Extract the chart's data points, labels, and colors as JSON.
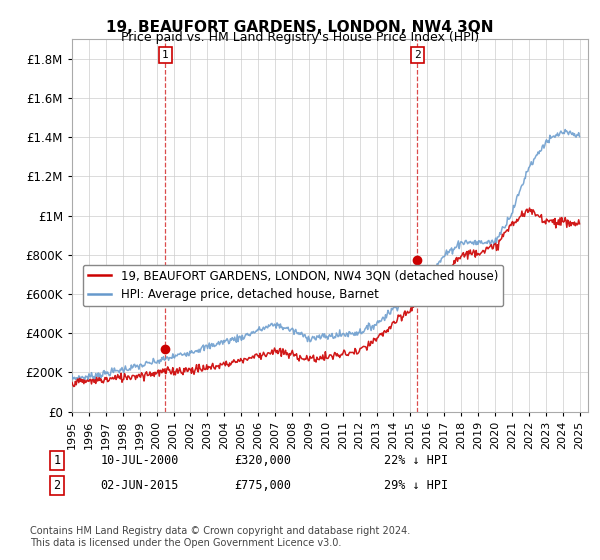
{
  "title": "19, BEAUFORT GARDENS, LONDON, NW4 3QN",
  "subtitle": "Price paid vs. HM Land Registry's House Price Index (HPI)",
  "ytick_values": [
    0,
    200000,
    400000,
    600000,
    800000,
    1000000,
    1200000,
    1400000,
    1600000,
    1800000
  ],
  "ylim": [
    0,
    1900000
  ],
  "xlim_start": 1995.0,
  "xlim_end": 2025.5,
  "x_years": [
    1995,
    1996,
    1997,
    1998,
    1999,
    2000,
    2001,
    2002,
    2003,
    2004,
    2005,
    2006,
    2007,
    2008,
    2009,
    2010,
    2011,
    2012,
    2013,
    2014,
    2015,
    2016,
    2017,
    2018,
    2019,
    2020,
    2021,
    2022,
    2023,
    2024,
    2025
  ],
  "hpi_base": [
    170000,
    178000,
    195000,
    215000,
    233000,
    255000,
    280000,
    305000,
    330000,
    358000,
    378000,
    415000,
    445000,
    415000,
    375000,
    382000,
    393000,
    405000,
    448000,
    525000,
    598000,
    678000,
    795000,
    865000,
    862000,
    865000,
    1015000,
    1248000,
    1375000,
    1425000,
    1405000
  ],
  "pp_base": [
    148000,
    155000,
    163000,
    175000,
    186000,
    198000,
    208000,
    213000,
    222000,
    242000,
    262000,
    287000,
    307000,
    290000,
    268000,
    277000,
    292000,
    307000,
    367000,
    447000,
    517000,
    597000,
    717000,
    797000,
    817000,
    837000,
    957000,
    1027000,
    977000,
    967000,
    957000
  ],
  "sale_point_1_x": 2000.52,
  "sale_point_1_y": 320000,
  "sale_point_2_x": 2015.42,
  "sale_point_2_y": 775000,
  "vline_1_x": 2000.52,
  "vline_2_x": 2015.42,
  "legend_line1": "19, BEAUFORT GARDENS, LONDON, NW4 3QN (detached house)",
  "legend_line2": "HPI: Average price, detached house, Barnet",
  "annotation_1_label": "1",
  "annotation_1_date": "10-JUL-2000",
  "annotation_1_price": "£320,000",
  "annotation_1_hpi": "22% ↓ HPI",
  "annotation_2_label": "2",
  "annotation_2_date": "02-JUN-2015",
  "annotation_2_price": "£775,000",
  "annotation_2_hpi": "29% ↓ HPI",
  "footer": "Contains HM Land Registry data © Crown copyright and database right 2024.\nThis data is licensed under the Open Government Licence v3.0.",
  "line_color_red": "#cc0000",
  "line_color_blue": "#6699cc",
  "vline_color": "#cc0000",
  "point_color_red": "#cc0000",
  "bg_color": "#ffffff",
  "grid_color": "#cccccc",
  "title_fontsize": 11,
  "subtitle_fontsize": 9,
  "tick_fontsize": 8.5,
  "legend_fontsize": 8.5,
  "footer_fontsize": 7
}
